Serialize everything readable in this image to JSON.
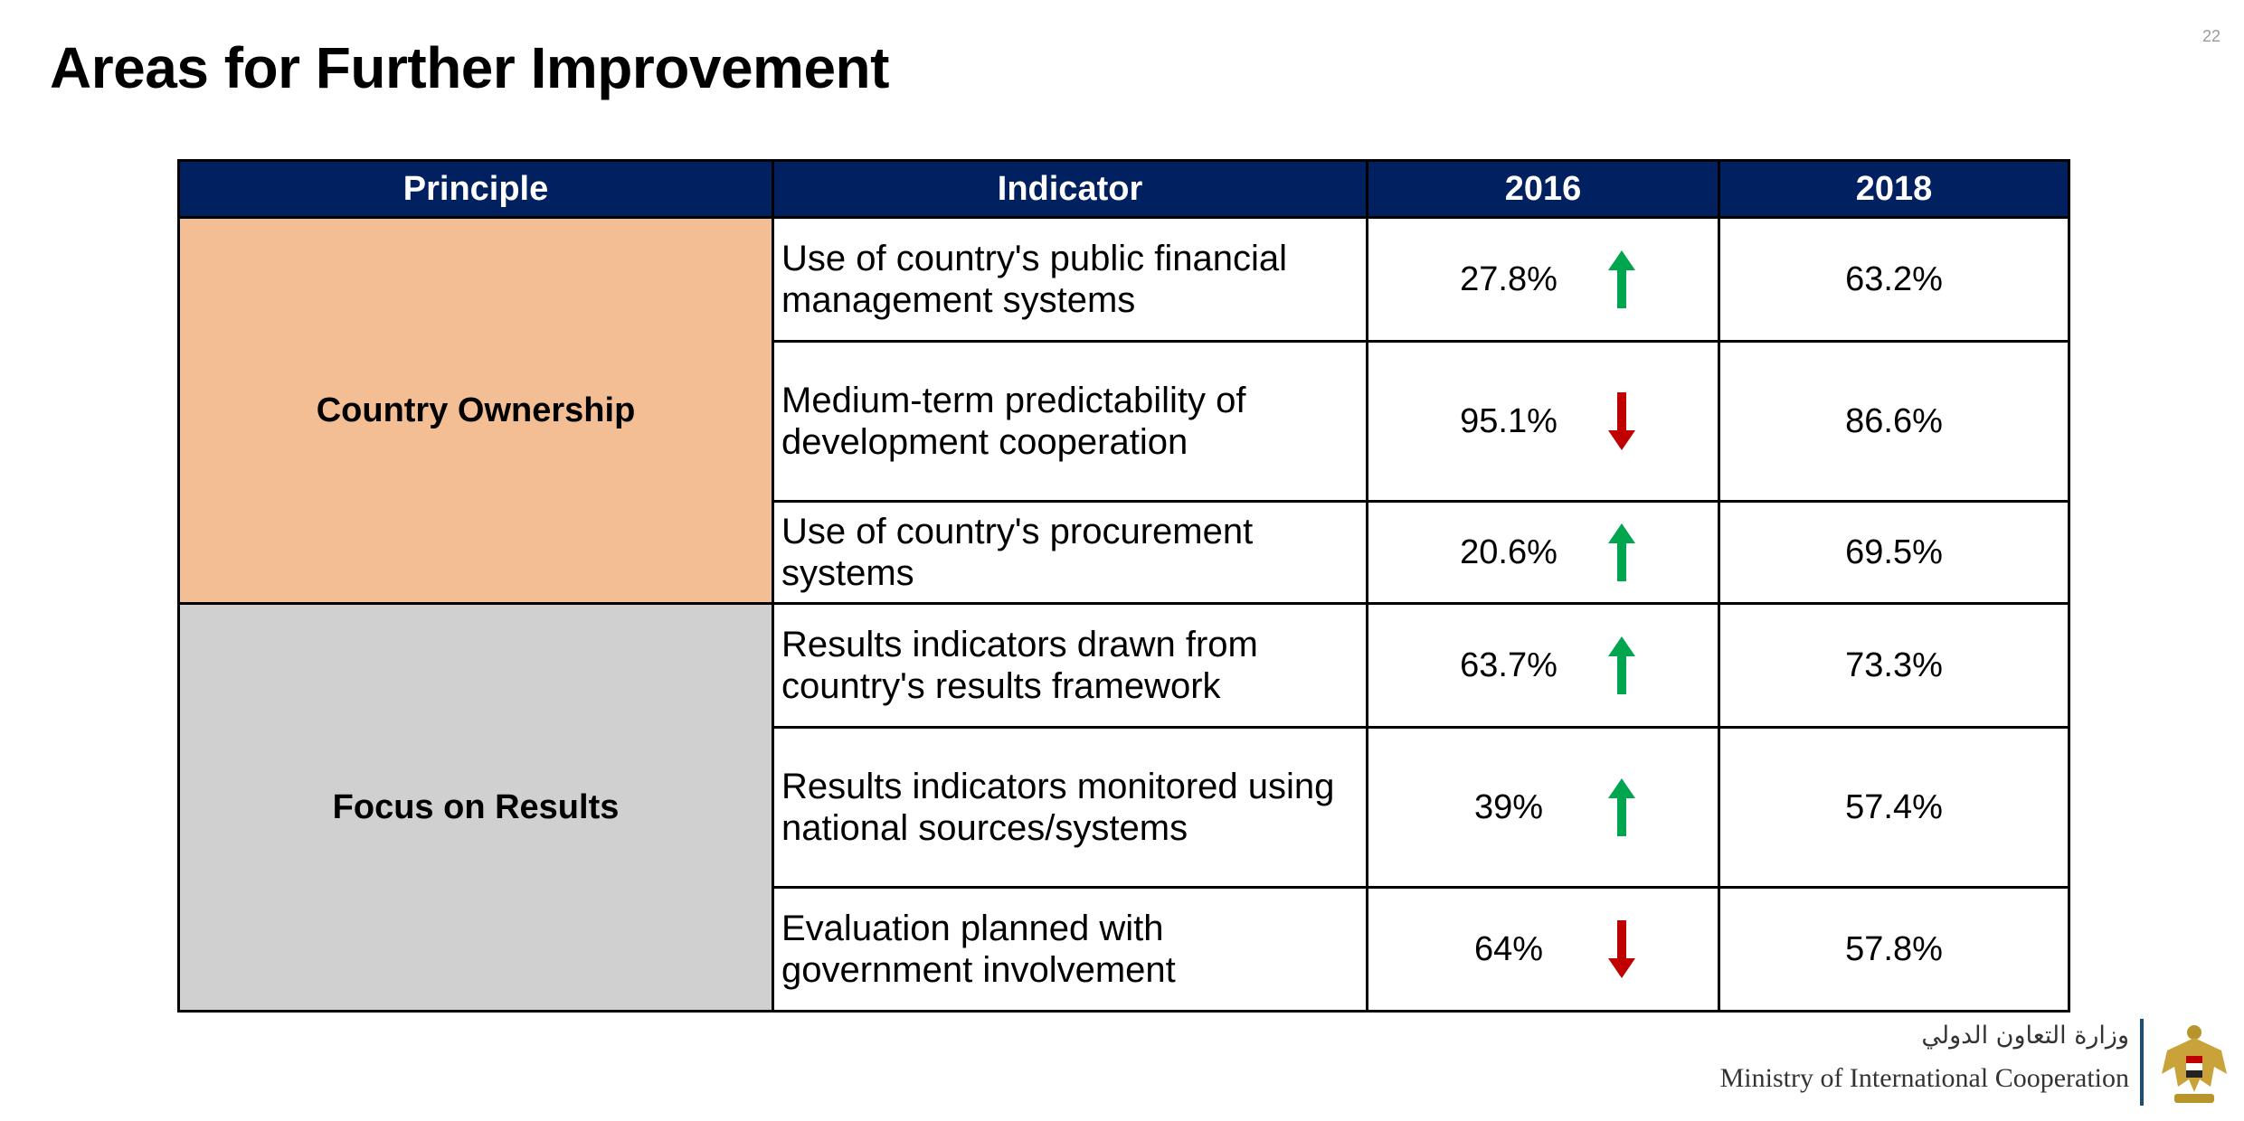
{
  "page": {
    "number": "22",
    "title": "Areas for Further Improvement"
  },
  "table": {
    "headers": [
      "Principle",
      "Indicator",
      "2016",
      "2018"
    ],
    "principles": [
      {
        "name": "Country Ownership",
        "color": "#f4be95"
      },
      {
        "name": "Focus on Results",
        "color": "#d0d0d0"
      }
    ],
    "rows": [
      {
        "indicator": "Use of country's public financial management systems",
        "v2016": "27.8%",
        "trend": "up",
        "v2018": "63.2%"
      },
      {
        "indicator": "Medium-term predictability of development cooperation",
        "v2016": "95.1%",
        "trend": "down",
        "v2018": "86.6%"
      },
      {
        "indicator": "Use of country's procurement systems",
        "v2016": "20.6%",
        "trend": "up",
        "v2018": "69.5%"
      },
      {
        "indicator": "Results indicators drawn from country's results framework",
        "v2016": "63.7%",
        "trend": "up",
        "v2018": "73.3%"
      },
      {
        "indicator": "Results indicators monitored using national sources/systems",
        "v2016": "39%",
        "trend": "up",
        "v2018": "57.4%"
      },
      {
        "indicator": "Evaluation planned with government involvement",
        "v2016": "64%",
        "trend": "down",
        "v2018": "57.8%"
      }
    ]
  },
  "colors": {
    "header_bg": "#002060",
    "arrow_up": "#00a550",
    "arrow_down": "#c00000"
  },
  "footer": {
    "arabic": "وزارة التعاون الدولي",
    "english": "Ministry of International Cooperation"
  }
}
